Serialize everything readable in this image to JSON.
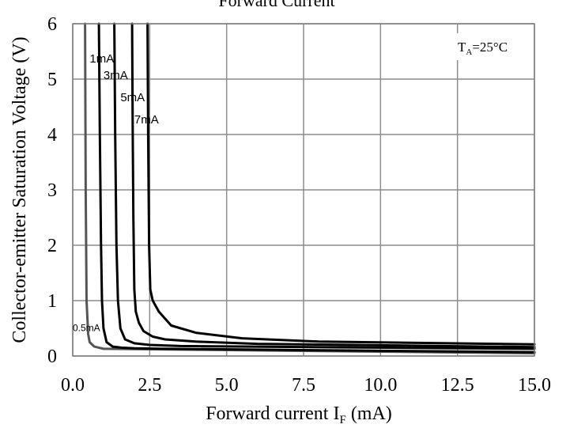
{
  "chart_data": {
    "type": "line",
    "title": "Forward Current",
    "xlabel_main": "Forward current I",
    "xlabel_sub": "F",
    "xlabel_unit": " (mA)",
    "ylabel": "Collector-emitter Saturation Voltage (V)",
    "xlim": [
      0,
      15
    ],
    "ylim": [
      0,
      6
    ],
    "x_ticks": [
      0,
      2.5,
      5,
      7.5,
      10,
      12.5,
      15
    ],
    "x_tick_labels": [
      "0.0",
      "2.5",
      "5.0",
      "7.5",
      "10.0",
      "12.5",
      "15.0"
    ],
    "y_ticks": [
      0,
      1,
      2,
      3,
      4,
      5,
      6
    ],
    "y_tick_labels": [
      "0",
      "1",
      "2",
      "3",
      "4",
      "5",
      "6"
    ],
    "grid": true,
    "annotation": {
      "main": "T",
      "sub": "A",
      "rest": "=25°C"
    },
    "series": [
      {
        "name": "0.5mA",
        "color": "#555555",
        "x": [
          0.4,
          0.42,
          0.45,
          0.5,
          0.55,
          0.7,
          1.0,
          15.0
        ],
        "y": [
          6.0,
          3.0,
          1.0,
          0.4,
          0.25,
          0.17,
          0.13,
          0.05
        ]
      },
      {
        "name": "1mA",
        "color": "#000000",
        "x": [
          0.85,
          0.88,
          0.92,
          0.95,
          1.0,
          1.1,
          1.3,
          1.6,
          2.0,
          3.0,
          15.0
        ],
        "y": [
          6.0,
          4.0,
          2.0,
          1.0,
          0.5,
          0.25,
          0.17,
          0.15,
          0.14,
          0.13,
          0.07
        ]
      },
      {
        "name": "3mA",
        "color": "#000000",
        "x": [
          1.35,
          1.38,
          1.42,
          1.47,
          1.55,
          1.7,
          2.0,
          2.5,
          3.5,
          15.0
        ],
        "y": [
          6.0,
          4.0,
          2.0,
          1.0,
          0.5,
          0.3,
          0.23,
          0.2,
          0.18,
          0.13
        ]
      },
      {
        "name": "5mA",
        "color": "#000000",
        "x": [
          1.93,
          1.95,
          1.97,
          2.0,
          2.05,
          2.15,
          2.3,
          2.6,
          3.0,
          4.0,
          6.0,
          15.0
        ],
        "y": [
          6.0,
          4.0,
          2.5,
          1.2,
          0.8,
          0.6,
          0.45,
          0.35,
          0.3,
          0.26,
          0.22,
          0.16
        ]
      },
      {
        "name": "7mA",
        "color": "#000000",
        "x": [
          2.43,
          2.45,
          2.48,
          2.52,
          2.6,
          2.8,
          3.2,
          4.0,
          5.5,
          8.0,
          15.0
        ],
        "y": [
          6.0,
          4.0,
          2.0,
          1.2,
          1.0,
          0.8,
          0.55,
          0.42,
          0.32,
          0.26,
          0.21
        ]
      }
    ]
  }
}
